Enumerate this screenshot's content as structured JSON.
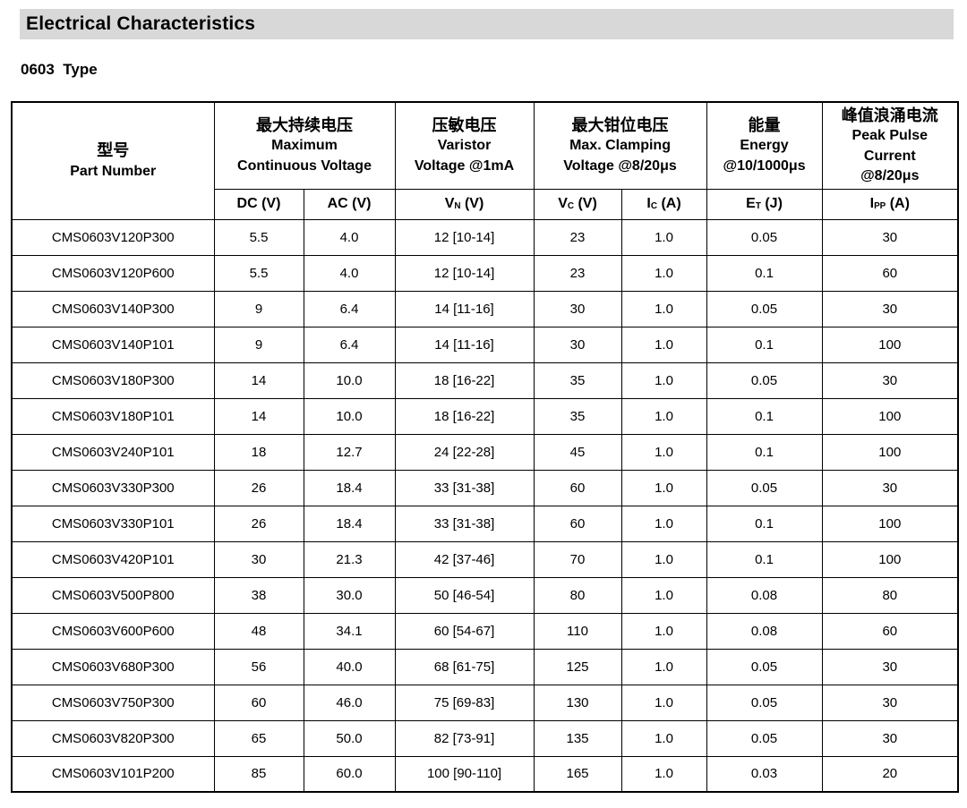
{
  "page": {
    "section_title": "Electrical Characteristics",
    "subtitle": "0603  Type"
  },
  "colors": {
    "title_bar_bg": "#d8d8d8",
    "table_border": "#000000",
    "text": "#000000"
  },
  "table": {
    "part_number_header": {
      "zh": "型号",
      "en": "Part Number"
    },
    "groups": [
      {
        "zh": "最大持续电压",
        "lines": [
          "Maximum",
          "Continuous Voltage"
        ]
      },
      {
        "zh": "压敏电压",
        "lines": [
          "Varistor",
          "Voltage @1mA"
        ]
      },
      {
        "zh": "最大钳位电压",
        "lines": [
          "Max. Clamping",
          "Voltage @8/20μs"
        ]
      },
      {
        "zh": "能量",
        "lines": [
          "Energy",
          "@10/1000μs"
        ]
      },
      {
        "zh": "峰值浪涌电流",
        "lines": [
          "Peak Pulse",
          "Current",
          "@8/20μs"
        ]
      }
    ],
    "subheaders": [
      {
        "pre": "DC",
        "sub": "",
        "post": " (V)"
      },
      {
        "pre": "AC",
        "sub": "",
        "post": " (V)"
      },
      {
        "pre": "V",
        "sub": "N",
        "post": " (V)"
      },
      {
        "pre": "V",
        "sub": "C",
        "post": " (V)"
      },
      {
        "pre": "I",
        "sub": "C",
        "post": " (A)"
      },
      {
        "pre": "E",
        "sub": "T",
        "post": " (J)"
      },
      {
        "pre": "I",
        "sub": "PP",
        "post": " (A)"
      }
    ],
    "rows": [
      [
        "CMS0603V120P300",
        "5.5",
        "4.0",
        "12 [10-14]",
        "23",
        "1.0",
        "0.05",
        "30"
      ],
      [
        "CMS0603V120P600",
        "5.5",
        "4.0",
        "12 [10-14]",
        "23",
        "1.0",
        "0.1",
        "60"
      ],
      [
        "CMS0603V140P300",
        "9",
        "6.4",
        "14 [11-16]",
        "30",
        "1.0",
        "0.05",
        "30"
      ],
      [
        "CMS0603V140P101",
        "9",
        "6.4",
        "14 [11-16]",
        "30",
        "1.0",
        "0.1",
        "100"
      ],
      [
        "CMS0603V180P300",
        "14",
        "10.0",
        "18 [16-22]",
        "35",
        "1.0",
        "0.05",
        "30"
      ],
      [
        "CMS0603V180P101",
        "14",
        "10.0",
        "18 [16-22]",
        "35",
        "1.0",
        "0.1",
        "100"
      ],
      [
        "CMS0603V240P101",
        "18",
        "12.7",
        "24 [22-28]",
        "45",
        "1.0",
        "0.1",
        "100"
      ],
      [
        "CMS0603V330P300",
        "26",
        "18.4",
        "33 [31-38]",
        "60",
        "1.0",
        "0.05",
        "30"
      ],
      [
        "CMS0603V330P101",
        "26",
        "18.4",
        "33 [31-38]",
        "60",
        "1.0",
        "0.1",
        "100"
      ],
      [
        "CMS0603V420P101",
        "30",
        "21.3",
        "42 [37-46]",
        "70",
        "1.0",
        "0.1",
        "100"
      ],
      [
        "CMS0603V500P800",
        "38",
        "30.0",
        "50 [46-54]",
        "80",
        "1.0",
        "0.08",
        "80"
      ],
      [
        "CMS0603V600P600",
        "48",
        "34.1",
        "60 [54-67]",
        "110",
        "1.0",
        "0.08",
        "60"
      ],
      [
        "CMS0603V680P300",
        "56",
        "40.0",
        "68 [61-75]",
        "125",
        "1.0",
        "0.05",
        "30"
      ],
      [
        "CMS0603V750P300",
        "60",
        "46.0",
        "75 [69-83]",
        "130",
        "1.0",
        "0.05",
        "30"
      ],
      [
        "CMS0603V820P300",
        "65",
        "50.0",
        "82 [73-91]",
        "135",
        "1.0",
        "0.05",
        "30"
      ],
      [
        "CMS0603V101P200",
        "85",
        "60.0",
        "100 [90-110]",
        "165",
        "1.0",
        "0.03",
        "20"
      ]
    ]
  }
}
